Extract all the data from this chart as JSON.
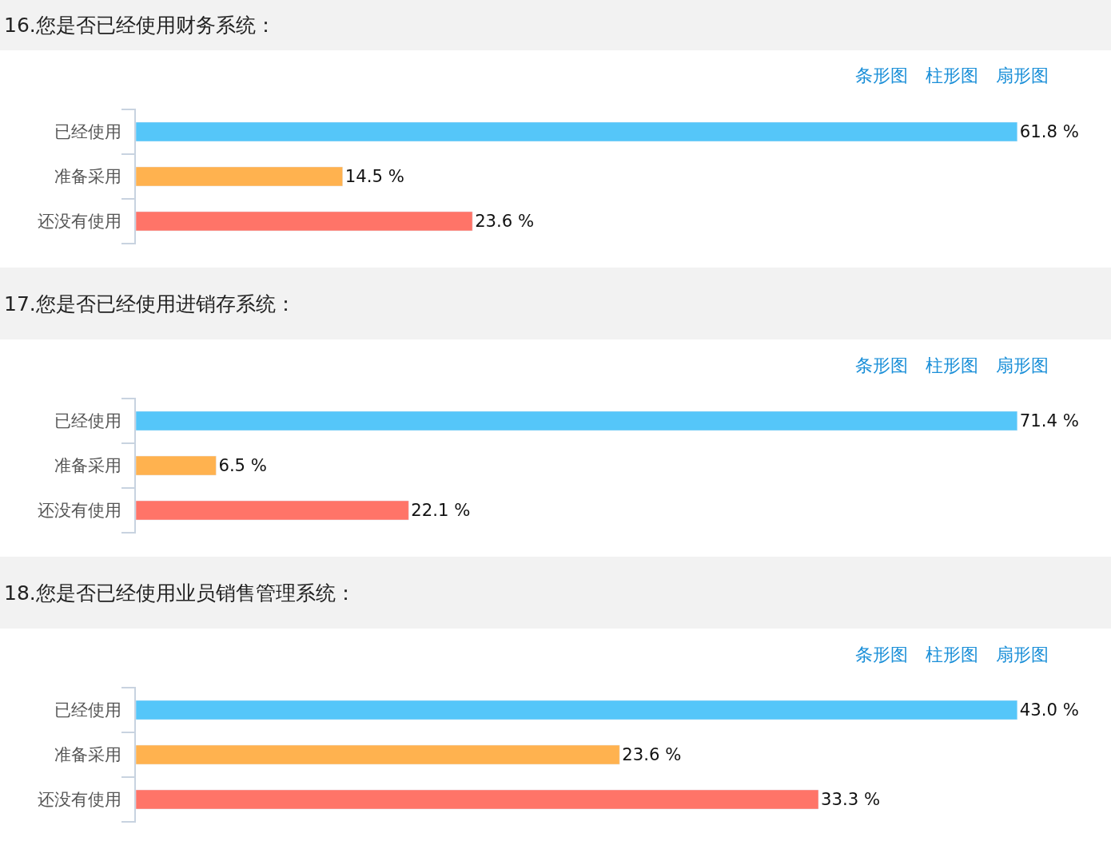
{
  "chart_data": [
    {
      "type": "bar",
      "orientation": "horizontal",
      "title": "16.您是否已经使用财务系统：",
      "annotations": [
        "条形图",
        "柱形图",
        "扇形图"
      ],
      "categories": [
        "已经使用",
        "准备采用",
        "还没有使用"
      ],
      "values": [
        61.8,
        14.5,
        23.6
      ],
      "colors": [
        "#55c6f9",
        "#ffb24f",
        "#ff7468"
      ],
      "value_labels": [
        "61.8 %",
        "14.5 %",
        "23.6 %"
      ]
    },
    {
      "type": "bar",
      "orientation": "horizontal",
      "title": "17.您是否已经使用进销存系统：",
      "annotations": [
        "条形图",
        "柱形图",
        "扇形图"
      ],
      "categories": [
        "已经使用",
        "准备采用",
        "还没有使用"
      ],
      "values": [
        71.4,
        6.5,
        22.1
      ],
      "colors": [
        "#55c6f9",
        "#ffb24f",
        "#ff7468"
      ],
      "value_labels": [
        "71.4 %",
        "6.5 %",
        "22.1 %"
      ]
    },
    {
      "type": "bar",
      "orientation": "horizontal",
      "title": "18.您是否已经使用业员销售管理系统：",
      "annotations": [
        "条形图",
        "柱形图",
        "扇形图"
      ],
      "categories": [
        "已经使用",
        "准备采用",
        "还没有使用"
      ],
      "values": [
        43.0,
        23.6,
        33.3
      ],
      "colors": [
        "#55c6f9",
        "#ffb24f",
        "#ff7468"
      ],
      "value_labels": [
        "43.0 %",
        "23.6 %",
        "33.3 %"
      ]
    }
  ]
}
